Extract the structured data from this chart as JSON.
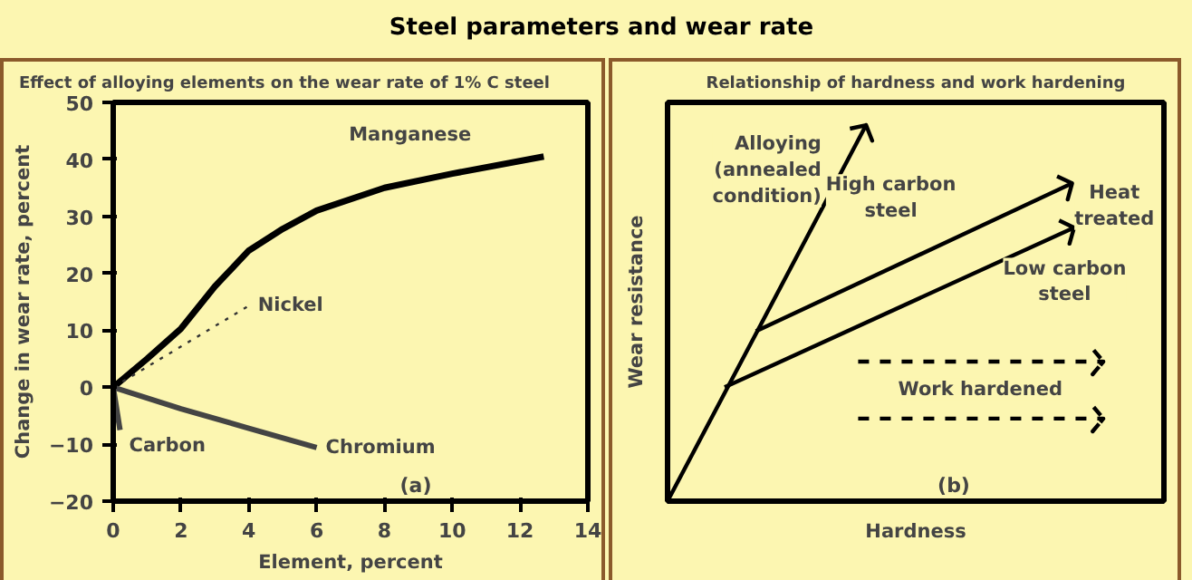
{
  "chart_data": [
    {
      "type": "other",
      "title": "Steel parameters and wear rate"
    },
    {
      "type": "line",
      "title": "Effect of alloying elements on the wear rate of 1% C steel",
      "xlabel": "Element, percent",
      "ylabel": "Change in wear rate, percent",
      "annotations": [
        "(a)"
      ],
      "xlim": [
        0,
        14
      ],
      "ylim": [
        -20,
        50
      ],
      "xticks": [
        0,
        2,
        4,
        6,
        8,
        10,
        12,
        14
      ],
      "yticks": [
        -20,
        -10,
        0,
        10,
        20,
        30,
        40,
        50
      ],
      "series": [
        {
          "name": "Manganese",
          "color": "#000000",
          "line_style": "solid",
          "x": [
            0,
            1,
            2,
            3,
            4,
            5,
            6,
            8,
            10,
            12.7
          ],
          "values": [
            0,
            5,
            10.3,
            17.7,
            24,
            27.8,
            31,
            35,
            37.5,
            40.5
          ]
        },
        {
          "name": "Nickel",
          "color": "#333333",
          "line_style": "dotted",
          "x": [
            0,
            4
          ],
          "values": [
            0,
            14.3
          ]
        },
        {
          "name": "Chromium",
          "color": "#444444",
          "line_style": "solid",
          "x": [
            0,
            2,
            4,
            6
          ],
          "values": [
            0,
            -3.8,
            -7.2,
            -10.6
          ]
        },
        {
          "name": "Carbon",
          "color": "#444444",
          "line_style": "solid",
          "x": [
            0,
            0.2
          ],
          "values": [
            0,
            -7.5
          ]
        }
      ]
    },
    {
      "type": "other",
      "title": "Relationship of hardness and work hardening",
      "xlabel": "Hardness",
      "ylabel": "Wear resistance",
      "annotations": [
        "(b)",
        "Alloying\n(annealed\ncondition)",
        "High carbon\nsteel",
        "Low carbon\nsteel",
        "Heat\ntreated",
        "Work hardened"
      ]
    }
  ]
}
